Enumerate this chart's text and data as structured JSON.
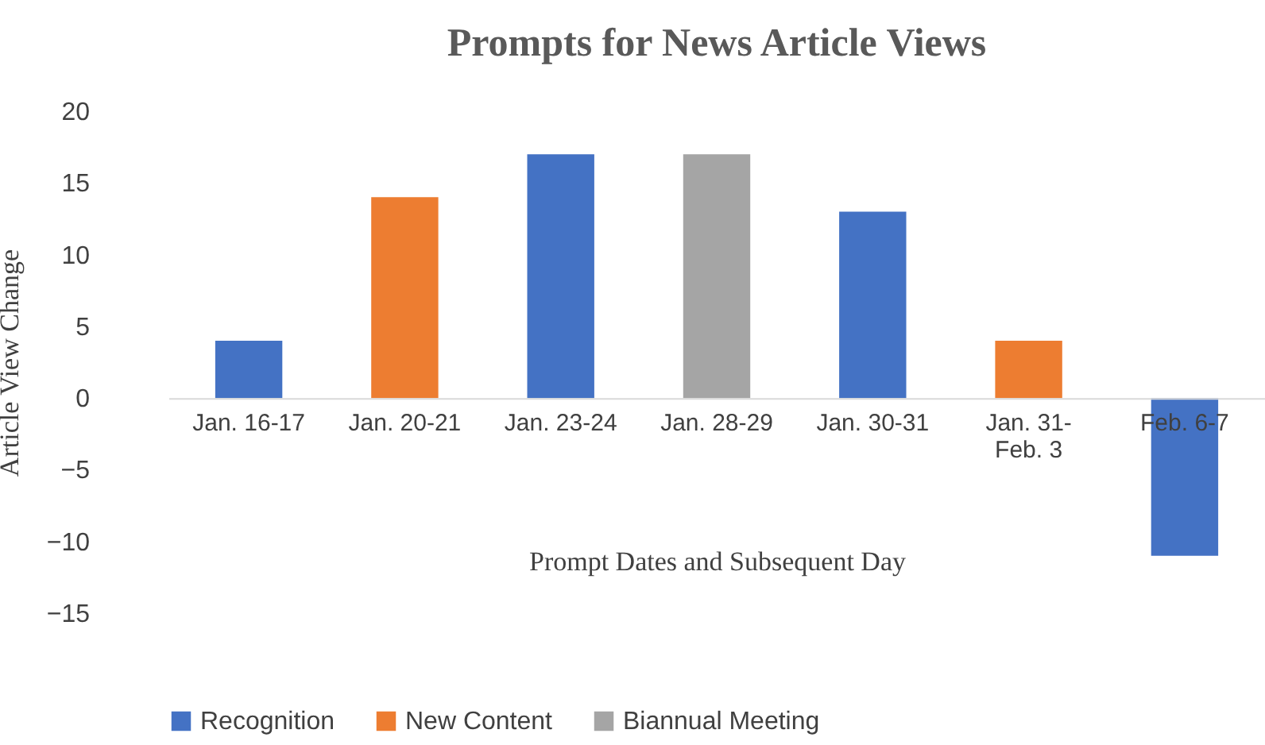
{
  "chart_data": {
    "type": "bar",
    "title": "Prompts  for News Article Views",
    "xlabel": "Prompt Dates and Subsequent Day",
    "ylabel": "Article View Change",
    "categories": [
      "Jan. 16-17",
      "Jan. 20-21",
      "Jan. 23-24",
      "Jan. 28-29",
      "Jan. 30-31",
      "Jan. 31-\nFeb. 3",
      "Feb. 6-7"
    ],
    "series": [
      {
        "name": "Recognition",
        "color": "#4472c4",
        "values": [
          4,
          null,
          17,
          null,
          13,
          null,
          -11
        ]
      },
      {
        "name": "New Content",
        "color": "#ed7d31",
        "values": [
          null,
          14,
          null,
          null,
          null,
          4,
          null
        ]
      },
      {
        "name": "Biannual Meeting",
        "color": "#a5a5a5",
        "values": [
          null,
          null,
          null,
          17,
          null,
          null,
          null
        ]
      }
    ],
    "ylim": [
      -15,
      20
    ],
    "yticks": [
      -15,
      -10,
      -5,
      0,
      5,
      10,
      15,
      20
    ],
    "grid": false,
    "legend": "bottom"
  }
}
